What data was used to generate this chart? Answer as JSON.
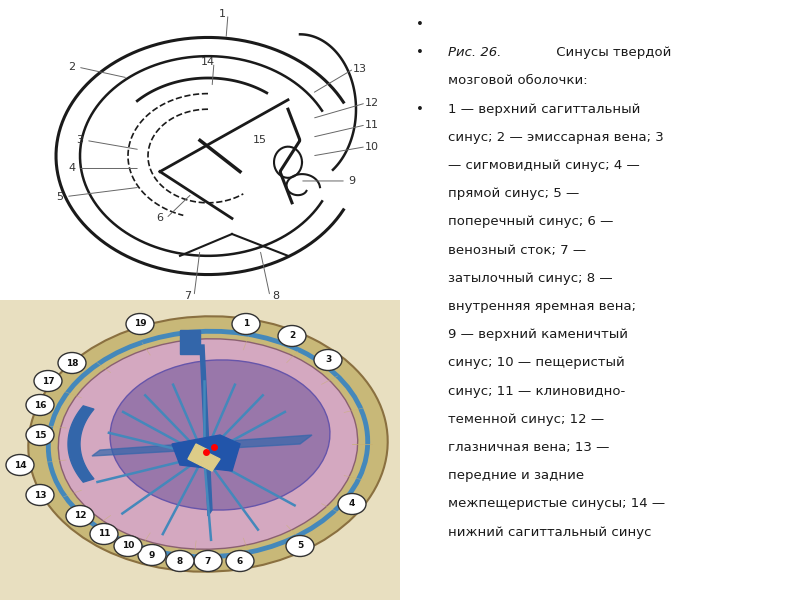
{
  "background_color": "#ffffff",
  "text_color": "#1a1a1a",
  "line_color": "#1a1a1a",
  "text_fontsize": 9.5,
  "bullet_symbol": "•",
  "title_italic": "Рис. 26.",
  "title_normal": " Синусы твердой мозговой оболочки:",
  "description_lines": [
    [
      "",
      "1",
      " — верхний сагиттальный"
    ],
    [
      "",
      "",
      "синус; 2 — эмиссарная вена; 3"
    ],
    [
      "",
      "",
      "— сигмовидный синус; 4 —"
    ],
    [
      "",
      "",
      "прямой синус; 5 —"
    ],
    [
      "",
      "",
      "поперечный синус; 6 —"
    ],
    [
      "",
      "",
      "венозный сток; 7 —"
    ],
    [
      "",
      "",
      "затылочный синус; 8 —"
    ],
    [
      "",
      "",
      "внутренняя яремная вена;"
    ],
    [
      "",
      "",
      "9 — верхний каменичтый"
    ],
    [
      "",
      "",
      "синус; 10 — пещеристый"
    ],
    [
      "",
      "",
      "синус; 11 — клиновидно-"
    ],
    [
      "",
      "",
      "теменной синус; 12 —"
    ],
    [
      "",
      "",
      "глазничная вена; 13 —"
    ],
    [
      "",
      "",
      "передние и задние"
    ],
    [
      "",
      "",
      "межпещеристые синусы; 14 —"
    ],
    [
      "",
      "",
      "нижний сагиттальный синус"
    ]
  ],
  "top_labels": [
    [
      "1",
      5.55,
      9.55,
      5.65,
      8.75
    ],
    [
      "2",
      1.8,
      7.85,
      3.2,
      7.5
    ],
    [
      "14",
      5.2,
      8.0,
      5.3,
      7.2
    ],
    [
      "13",
      9.0,
      7.8,
      7.8,
      7.0
    ],
    [
      "12",
      9.3,
      6.7,
      7.8,
      6.2
    ],
    [
      "11",
      9.3,
      6.0,
      7.8,
      5.6
    ],
    [
      "10",
      9.3,
      5.3,
      7.8,
      5.0
    ],
    [
      "3",
      2.0,
      5.5,
      3.5,
      5.2
    ],
    [
      "15",
      6.5,
      5.5,
      6.5,
      5.5
    ],
    [
      "4",
      1.8,
      4.6,
      3.5,
      4.6
    ],
    [
      "9",
      8.8,
      4.2,
      7.5,
      4.2
    ],
    [
      "5",
      1.5,
      3.7,
      3.5,
      4.0
    ],
    [
      "6",
      4.0,
      3.0,
      4.8,
      3.8
    ],
    [
      "7",
      4.7,
      0.5,
      5.0,
      2.0
    ],
    [
      "8",
      6.9,
      0.5,
      6.5,
      2.0
    ]
  ],
  "bottom_labels": [
    [
      "1",
      6.15,
      9.2
    ],
    [
      "2",
      7.3,
      8.8
    ],
    [
      "3",
      8.2,
      8.0
    ],
    [
      "4",
      8.8,
      3.2
    ],
    [
      "5",
      7.5,
      1.8
    ],
    [
      "6",
      6.0,
      1.3
    ],
    [
      "7",
      5.2,
      1.3
    ],
    [
      "8",
      4.5,
      1.3
    ],
    [
      "9",
      3.8,
      1.5
    ],
    [
      "10",
      3.2,
      1.8
    ],
    [
      "11",
      2.6,
      2.2
    ],
    [
      "12",
      2.0,
      2.8
    ],
    [
      "13",
      1.0,
      3.5
    ],
    [
      "14",
      0.5,
      4.5
    ],
    [
      "15",
      1.0,
      5.5
    ],
    [
      "16",
      1.0,
      6.5
    ],
    [
      "17",
      1.2,
      7.3
    ],
    [
      "18",
      1.8,
      7.9
    ],
    [
      "19",
      3.5,
      9.2
    ]
  ]
}
